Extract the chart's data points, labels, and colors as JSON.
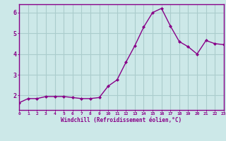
{
  "x": [
    0,
    1,
    2,
    3,
    4,
    5,
    6,
    7,
    8,
    9,
    10,
    11,
    12,
    13,
    14,
    15,
    16,
    17,
    18,
    19,
    20,
    21,
    22,
    23
  ],
  "y": [
    1.65,
    1.85,
    1.85,
    1.95,
    1.95,
    1.95,
    1.9,
    1.85,
    1.85,
    1.9,
    2.45,
    2.75,
    3.6,
    4.4,
    5.3,
    6.0,
    6.2,
    5.35,
    4.6,
    4.35,
    4.0,
    4.65,
    4.5,
    4.45
  ],
  "line_color": "#880088",
  "marker_color": "#880088",
  "bg_color": "#cce8e8",
  "grid_color": "#aacccc",
  "axis_color": "#880088",
  "tick_color": "#880088",
  "xlabel": "Windchill (Refroidissement éolien,°C)",
  "ylim": [
    1.3,
    6.4
  ],
  "xlim": [
    0,
    23
  ],
  "yticks": [
    2,
    3,
    4,
    5,
    6
  ],
  "xticks": [
    0,
    1,
    2,
    3,
    4,
    5,
    6,
    7,
    8,
    9,
    10,
    11,
    12,
    13,
    14,
    15,
    16,
    17,
    18,
    19,
    20,
    21,
    22,
    23
  ]
}
